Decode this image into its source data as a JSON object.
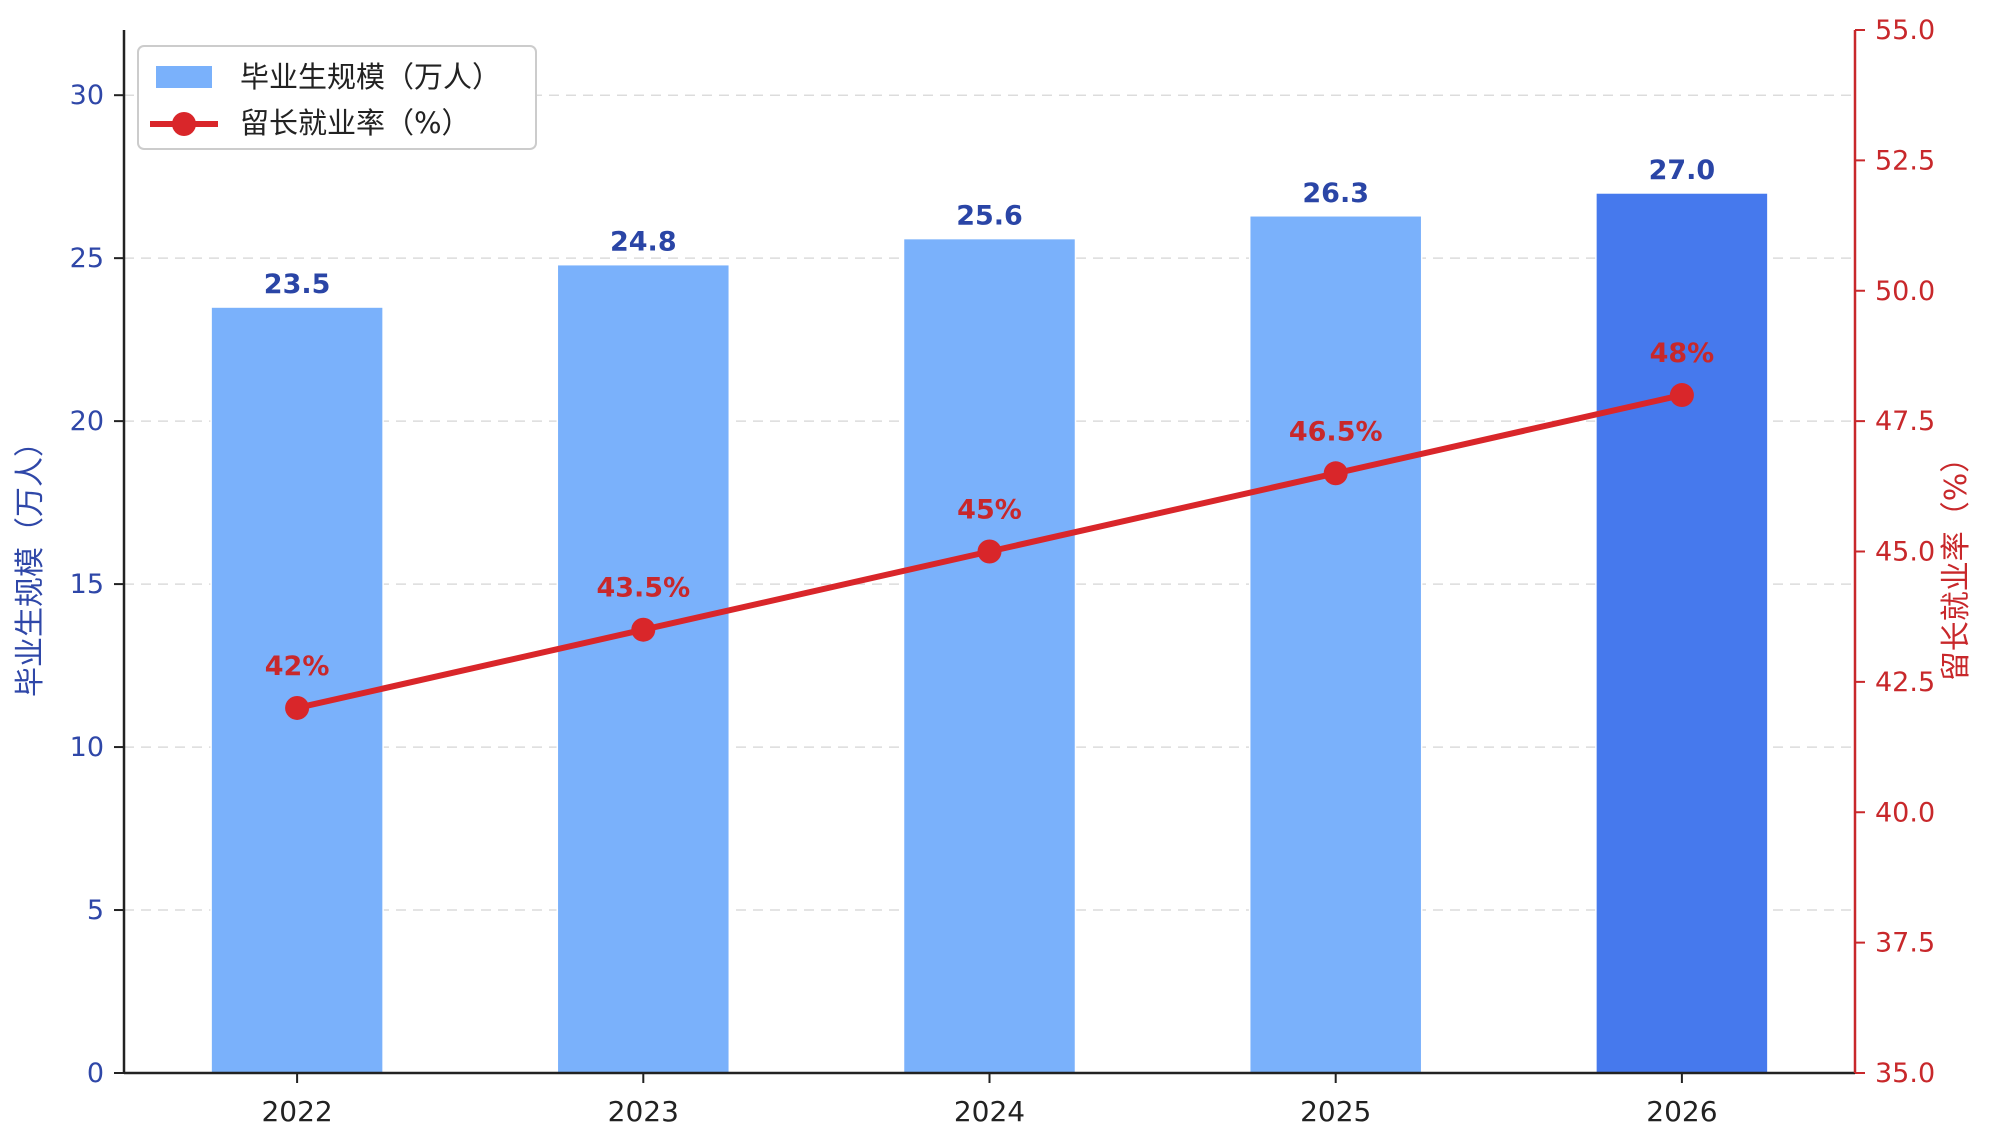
{
  "chart_data": {
    "type": "bar",
    "categories": [
      "2022",
      "2023",
      "2024",
      "2025",
      "2026"
    ],
    "series": [
      {
        "name": "毕业生规模（万人）",
        "type": "bar",
        "axis": "left",
        "values": [
          23.5,
          24.8,
          25.6,
          26.3,
          27.0
        ],
        "labels": [
          "23.5",
          "24.8",
          "25.6",
          "26.3",
          "27.0"
        ],
        "color": "#7ab1fb",
        "highlight_index": 4,
        "highlight_color": "#4679ed"
      },
      {
        "name": "留长就业率（%）",
        "type": "line",
        "axis": "right",
        "values": [
          42,
          43.5,
          45,
          46.5,
          48
        ],
        "labels": [
          "42%",
          "43.5%",
          "45%",
          "46.5%",
          "48%"
        ],
        "color": "#d9262a"
      }
    ],
    "y_left": {
      "label": "毕业生规模（万人）",
      "range": [
        0,
        32
      ],
      "ticks": [
        "0",
        "5",
        "10",
        "15",
        "20",
        "25",
        "30"
      ],
      "color": "#2f47a8"
    },
    "y_right": {
      "label": "留长就业率（%）",
      "range": [
        35,
        55
      ],
      "ticks": [
        "35.0",
        "37.5",
        "40.0",
        "42.5",
        "45.0",
        "47.5",
        "50.0",
        "52.5",
        "55.0"
      ],
      "color": "#c8282b"
    },
    "grid": true,
    "legend_position": "top-left",
    "bar_label_color": "#2a45a6",
    "line_label_color": "#c8282b"
  }
}
